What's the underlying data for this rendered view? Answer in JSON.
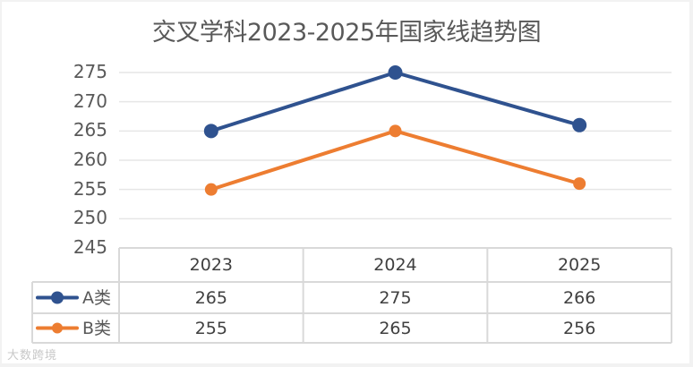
{
  "chart_data": {
    "type": "line",
    "title": "交叉学科2023-2025年国家线趋势图",
    "categories": [
      "2023",
      "2024",
      "2025"
    ],
    "series": [
      {
        "name": "A类",
        "values": [
          265,
          275,
          266
        ],
        "color": "#2f528f"
      },
      {
        "name": "B类",
        "values": [
          255,
          265,
          256
        ],
        "color": "#ed7d31"
      }
    ],
    "xlabel": "",
    "ylabel": "",
    "ylim": [
      245,
      275
    ],
    "yticks": [
      "275",
      "270",
      "265",
      "260",
      "255",
      "250",
      "245"
    ],
    "grid": true,
    "legend_position": "data-table",
    "data_table": true
  },
  "watermark": "大数跨境"
}
